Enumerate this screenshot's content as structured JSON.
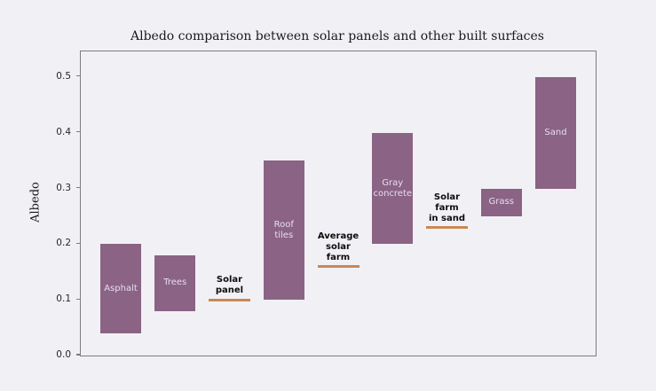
{
  "chart_data": {
    "type": "bar",
    "subtype": "floating-range-bars",
    "title": "Albedo comparison between solar panels and other built surfaces",
    "xlabel": "",
    "ylabel": "Albedo",
    "ylim": [
      0,
      0.546
    ],
    "yticks": [
      "0.0",
      "0.1",
      "0.2",
      "0.3",
      "0.4",
      "0.5"
    ],
    "ytick_values": [
      0.0,
      0.1,
      0.2,
      0.3,
      0.4,
      0.5
    ],
    "grid": false,
    "legend": "none",
    "colors": {
      "bar_fill": "#8b6384",
      "bar_label_text": "#e6deee",
      "highlight_line": "#c98855",
      "highlight_label_text": "#0d0d0d",
      "axis_border": "#7d7d7d",
      "background": "#f1f1f5",
      "title_text": "#1a1a1a"
    },
    "series": [
      {
        "name": "Asphalt",
        "style": "bar",
        "low": 0.04,
        "high": 0.2,
        "label_lines": [
          "Asphalt"
        ]
      },
      {
        "name": "Trees",
        "style": "bar",
        "low": 0.08,
        "high": 0.18,
        "label_lines": [
          "Trees"
        ]
      },
      {
        "name": "Solar panel",
        "style": "line",
        "value": 0.1,
        "label_lines": [
          "Solar",
          "panel"
        ]
      },
      {
        "name": "Roof tiles",
        "style": "bar",
        "low": 0.1,
        "high": 0.35,
        "label_lines": [
          "Roof",
          "tiles"
        ]
      },
      {
        "name": "Average solar farm",
        "style": "line",
        "value": 0.16,
        "label_lines": [
          "Average",
          "solar",
          "farm"
        ]
      },
      {
        "name": "Gray concrete",
        "style": "bar",
        "low": 0.2,
        "high": 0.4,
        "label_lines": [
          "Gray",
          "concrete"
        ]
      },
      {
        "name": "Solar farm in sand",
        "style": "line",
        "value": 0.23,
        "label_lines": [
          "Solar",
          "farm",
          "in sand"
        ]
      },
      {
        "name": "Grass",
        "style": "bar",
        "low": 0.25,
        "high": 0.3,
        "label_lines": [
          "Grass"
        ]
      },
      {
        "name": "Sand",
        "style": "bar",
        "low": 0.3,
        "high": 0.5,
        "label_lines": [
          "Sand"
        ]
      }
    ]
  }
}
